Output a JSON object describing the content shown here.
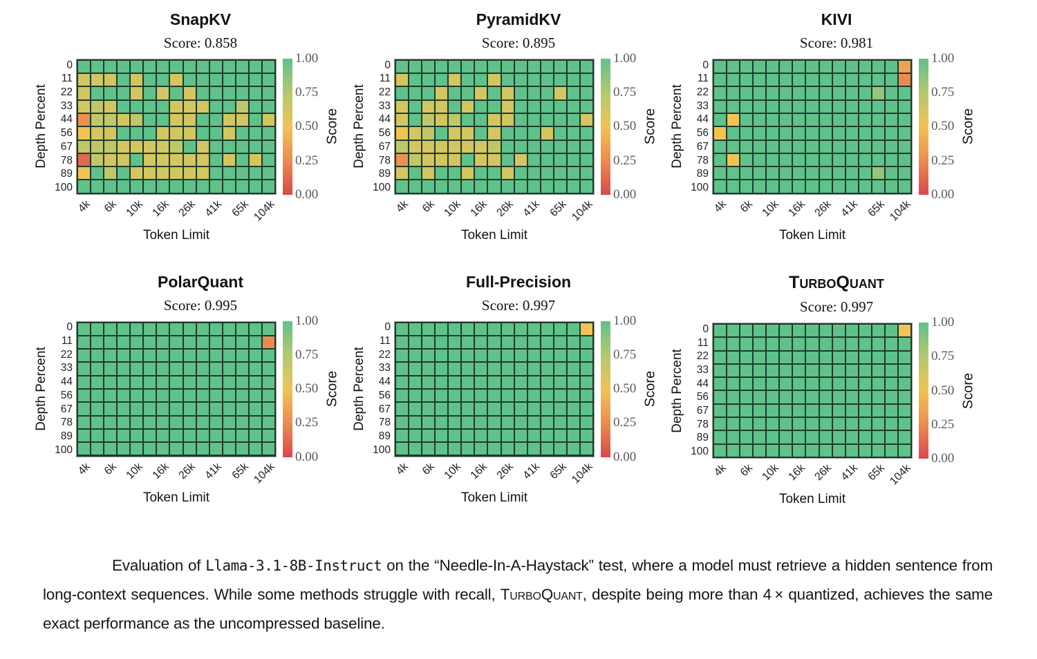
{
  "figure": {
    "x_axis_label": "Token Limit",
    "y_axis_label": "Depth Percent",
    "colorbar_label": "Score",
    "colorbar_tick_labels": [
      "1.00",
      "0.75",
      "0.50",
      "0.25",
      "0.00"
    ],
    "x_tick_labels": [
      "4k",
      "6k",
      "10k",
      "16k",
      "26k",
      "41k",
      "65k",
      "104k"
    ],
    "x_tick_columns": [
      1,
      3,
      5,
      7,
      9,
      11,
      13,
      15
    ],
    "y_tick_labels": [
      "0",
      "11",
      "22",
      "33",
      "44",
      "56",
      "67",
      "78",
      "89",
      "100"
    ],
    "n_columns": 15,
    "colors": {
      "colormap_stops": [
        [
          0,
          "#d9474d"
        ],
        [
          0.25,
          "#ec8b50"
        ],
        [
          0.5,
          "#f0c452"
        ],
        [
          0.75,
          "#b4c86f"
        ],
        [
          1,
          "#5fc28b"
        ]
      ],
      "grid_line": "#1e3a29",
      "frame": "#9a9a9a"
    }
  },
  "chart_data": [
    {
      "type": "heatmap",
      "title": "SnapKV",
      "title_smallcaps": false,
      "score_label": "Score: 0.858",
      "xlabel": "Token Limit",
      "ylabel": "Depth Percent",
      "x_categories": [
        "4k",
        "6k",
        "10k",
        "16k",
        "26k",
        "41k",
        "65k",
        "104k"
      ],
      "y_categories": [
        "0",
        "11",
        "22",
        "33",
        "44",
        "56",
        "67",
        "78",
        "89",
        "100"
      ],
      "values": [
        [
          1,
          1,
          1,
          1,
          1,
          1,
          1,
          1,
          1,
          1,
          1,
          1,
          1,
          1,
          1
        ],
        [
          0.62,
          0.62,
          0.62,
          1,
          0.62,
          1,
          1,
          0.62,
          1,
          1,
          1,
          1,
          1,
          1,
          1
        ],
        [
          0.62,
          1,
          1,
          1,
          0.62,
          1,
          0.62,
          1,
          0.62,
          1,
          1,
          1,
          1,
          1,
          1
        ],
        [
          0.62,
          0.7,
          0.62,
          1,
          1,
          1,
          1,
          0.62,
          0.62,
          0.62,
          1,
          1,
          0.7,
          1,
          1
        ],
        [
          0.28,
          0.7,
          0.7,
          0.62,
          0.7,
          1,
          1,
          0.62,
          0.62,
          1,
          1,
          0.62,
          0.62,
          1,
          0.62
        ],
        [
          0.5,
          0.62,
          0.62,
          1,
          1,
          1,
          0.62,
          0.62,
          0.62,
          1,
          1,
          0.62,
          1,
          1,
          1
        ],
        [
          0.7,
          0.7,
          0.7,
          0.62,
          0.62,
          0.62,
          0.62,
          0.7,
          1,
          0.62,
          1,
          1,
          1,
          1,
          1
        ],
        [
          0.12,
          0.7,
          0.62,
          0.62,
          1,
          0.62,
          0.62,
          0.62,
          0.62,
          0.62,
          1,
          0.62,
          1,
          0.62,
          1
        ],
        [
          0.5,
          1,
          0.7,
          1,
          0.62,
          0.62,
          0.62,
          0.62,
          0.62,
          0.62,
          1,
          1,
          1,
          1,
          1
        ],
        [
          1,
          1,
          1,
          1,
          1,
          1,
          1,
          1,
          1,
          1,
          1,
          1,
          1,
          1,
          1
        ]
      ]
    },
    {
      "type": "heatmap",
      "title": "PyramidKV",
      "title_smallcaps": false,
      "score_label": "Score: 0.895",
      "xlabel": "Token Limit",
      "ylabel": "Depth Percent",
      "x_categories": [
        "4k",
        "6k",
        "10k",
        "16k",
        "26k",
        "41k",
        "65k",
        "104k"
      ],
      "y_categories": [
        "0",
        "11",
        "22",
        "33",
        "44",
        "56",
        "67",
        "78",
        "89",
        "100"
      ],
      "values": [
        [
          1,
          1,
          1,
          1,
          1,
          1,
          1,
          1,
          1,
          1,
          1,
          1,
          1,
          1,
          1
        ],
        [
          0.62,
          1,
          1,
          1,
          0.62,
          1,
          1,
          0.62,
          1,
          1,
          1,
          1,
          1,
          1,
          1
        ],
        [
          1,
          1,
          1,
          0.62,
          1,
          1,
          0.62,
          1,
          0.62,
          1,
          1,
          1,
          0.62,
          1,
          1
        ],
        [
          0.62,
          1,
          0.62,
          0.62,
          1,
          0.62,
          1,
          1,
          0.62,
          1,
          1,
          1,
          1,
          1,
          1
        ],
        [
          0.62,
          1,
          0.7,
          0.62,
          0.7,
          1,
          1,
          0.62,
          0.62,
          1,
          1,
          1,
          1,
          1,
          0.62
        ],
        [
          0.5,
          0.62,
          0.7,
          1,
          0.62,
          0.62,
          1,
          0.62,
          1,
          1,
          1,
          0.62,
          1,
          1,
          1
        ],
        [
          0.7,
          0.62,
          0.62,
          0.62,
          0.62,
          0.62,
          0.62,
          0.7,
          1,
          1,
          1,
          1,
          1,
          1,
          1
        ],
        [
          0.28,
          0.7,
          0.62,
          0.62,
          0.62,
          1,
          0.62,
          0.62,
          1,
          0.62,
          1,
          1,
          1,
          1,
          1
        ],
        [
          0.62,
          1,
          0.62,
          1,
          1,
          0.62,
          1,
          1,
          0.62,
          1,
          1,
          1,
          1,
          1,
          1
        ],
        [
          1,
          1,
          1,
          1,
          1,
          1,
          1,
          1,
          1,
          1,
          1,
          1,
          1,
          1,
          1
        ]
      ]
    },
    {
      "type": "heatmap",
      "title": "KIVI",
      "title_smallcaps": false,
      "score_label": "Score: 0.981",
      "xlabel": "Token Limit",
      "ylabel": "Depth Percent",
      "x_categories": [
        "4k",
        "6k",
        "10k",
        "16k",
        "26k",
        "41k",
        "65k",
        "104k"
      ],
      "y_categories": [
        "0",
        "11",
        "22",
        "33",
        "44",
        "56",
        "67",
        "78",
        "89",
        "100"
      ],
      "values": [
        [
          1,
          1,
          1,
          1,
          1,
          1,
          1,
          1,
          1,
          1,
          1,
          1,
          1,
          1,
          0.35
        ],
        [
          1,
          1,
          1,
          1,
          1,
          1,
          1,
          1,
          1,
          1,
          1,
          1,
          1,
          1,
          0.25
        ],
        [
          1,
          1,
          1,
          1,
          1,
          1,
          1,
          1,
          1,
          1,
          1,
          1,
          0.85,
          1,
          1
        ],
        [
          1,
          1,
          1,
          1,
          1,
          1,
          1,
          1,
          1,
          1,
          1,
          1,
          1,
          1,
          1
        ],
        [
          1,
          0.5,
          1,
          1,
          1,
          1,
          1,
          1,
          1,
          1,
          1,
          1,
          1,
          1,
          1
        ],
        [
          0.5,
          1,
          1,
          1,
          1,
          1,
          1,
          1,
          1,
          1,
          1,
          1,
          1,
          1,
          1
        ],
        [
          1,
          1,
          1,
          1,
          1,
          1,
          1,
          1,
          1,
          1,
          1,
          1,
          1,
          1,
          1
        ],
        [
          1,
          0.5,
          1,
          1,
          1,
          1,
          1,
          1,
          1,
          1,
          1,
          1,
          1,
          1,
          1
        ],
        [
          1,
          1,
          1,
          1,
          1,
          1,
          1,
          1,
          1,
          1,
          1,
          1,
          0.85,
          1,
          1
        ],
        [
          1,
          1,
          1,
          1,
          1,
          1,
          1,
          1,
          1,
          1,
          1,
          1,
          1,
          1,
          1
        ]
      ]
    },
    {
      "type": "heatmap",
      "title": "PolarQuant",
      "title_smallcaps": false,
      "score_label": "Score: 0.995",
      "xlabel": "Token Limit",
      "ylabel": "Depth Percent",
      "x_categories": [
        "4k",
        "6k",
        "10k",
        "16k",
        "26k",
        "41k",
        "65k",
        "104k"
      ],
      "y_categories": [
        "0",
        "11",
        "22",
        "33",
        "44",
        "56",
        "67",
        "78",
        "89",
        "100"
      ],
      "values": [
        [
          1,
          1,
          1,
          1,
          1,
          1,
          1,
          1,
          1,
          1,
          1,
          1,
          1,
          1,
          1
        ],
        [
          1,
          1,
          1,
          1,
          1,
          1,
          1,
          1,
          1,
          1,
          1,
          1,
          1,
          1,
          0.25
        ],
        [
          1,
          1,
          1,
          1,
          1,
          1,
          1,
          1,
          1,
          1,
          1,
          1,
          1,
          1,
          1
        ],
        [
          1,
          1,
          1,
          1,
          1,
          1,
          1,
          1,
          1,
          1,
          1,
          1,
          1,
          1,
          1
        ],
        [
          1,
          1,
          1,
          1,
          1,
          1,
          1,
          1,
          1,
          1,
          1,
          1,
          1,
          1,
          1
        ],
        [
          1,
          1,
          1,
          1,
          1,
          1,
          1,
          1,
          1,
          1,
          1,
          1,
          1,
          1,
          1
        ],
        [
          1,
          1,
          1,
          1,
          1,
          1,
          1,
          1,
          1,
          1,
          1,
          1,
          1,
          1,
          1
        ],
        [
          1,
          1,
          1,
          1,
          1,
          1,
          1,
          1,
          1,
          1,
          1,
          1,
          1,
          1,
          1
        ],
        [
          1,
          1,
          1,
          1,
          1,
          1,
          1,
          1,
          1,
          1,
          1,
          1,
          1,
          1,
          1
        ],
        [
          1,
          1,
          1,
          1,
          1,
          1,
          1,
          1,
          1,
          1,
          1,
          1,
          1,
          1,
          1
        ]
      ]
    },
    {
      "type": "heatmap",
      "title": "Full-Precision",
      "title_smallcaps": false,
      "score_label": "Score: 0.997",
      "xlabel": "Token Limit",
      "ylabel": "Depth Percent",
      "x_categories": [
        "4k",
        "6k",
        "10k",
        "16k",
        "26k",
        "41k",
        "65k",
        "104k"
      ],
      "y_categories": [
        "0",
        "11",
        "22",
        "33",
        "44",
        "56",
        "67",
        "78",
        "89",
        "100"
      ],
      "values": [
        [
          1,
          1,
          1,
          1,
          1,
          1,
          1,
          1,
          1,
          1,
          1,
          1,
          1,
          1,
          0.5
        ],
        [
          1,
          1,
          1,
          1,
          1,
          1,
          1,
          1,
          1,
          1,
          1,
          1,
          1,
          1,
          1
        ],
        [
          1,
          1,
          1,
          1,
          1,
          1,
          1,
          1,
          1,
          1,
          1,
          1,
          1,
          1,
          1
        ],
        [
          1,
          1,
          1,
          1,
          1,
          1,
          1,
          1,
          1,
          1,
          1,
          1,
          1,
          1,
          1
        ],
        [
          1,
          1,
          1,
          1,
          1,
          1,
          1,
          1,
          1,
          1,
          1,
          1,
          1,
          1,
          1
        ],
        [
          1,
          1,
          1,
          1,
          1,
          1,
          1,
          1,
          1,
          1,
          1,
          1,
          1,
          1,
          1
        ],
        [
          1,
          1,
          1,
          1,
          1,
          1,
          1,
          1,
          1,
          1,
          1,
          1,
          1,
          1,
          1
        ],
        [
          1,
          1,
          1,
          1,
          1,
          1,
          1,
          1,
          1,
          1,
          1,
          1,
          1,
          1,
          1
        ],
        [
          1,
          1,
          1,
          1,
          1,
          1,
          1,
          1,
          1,
          1,
          1,
          1,
          1,
          1,
          1
        ],
        [
          1,
          1,
          1,
          1,
          1,
          1,
          1,
          1,
          1,
          1,
          1,
          1,
          1,
          1,
          1
        ]
      ]
    },
    {
      "type": "heatmap",
      "title": "TurboQuant",
      "title_smallcaps": true,
      "score_label": "Score: 0.997",
      "xlabel": "Token Limit",
      "ylabel": "Depth Percent",
      "x_categories": [
        "4k",
        "6k",
        "10k",
        "16k",
        "26k",
        "41k",
        "65k",
        "104k"
      ],
      "y_categories": [
        "0",
        "11",
        "22",
        "33",
        "44",
        "56",
        "67",
        "78",
        "89",
        "100"
      ],
      "values": [
        [
          1,
          1,
          1,
          1,
          1,
          1,
          1,
          1,
          1,
          1,
          1,
          1,
          1,
          1,
          0.5
        ],
        [
          1,
          1,
          1,
          1,
          1,
          1,
          1,
          1,
          1,
          1,
          1,
          1,
          1,
          1,
          1
        ],
        [
          1,
          1,
          1,
          1,
          1,
          1,
          1,
          1,
          1,
          1,
          1,
          1,
          1,
          1,
          1
        ],
        [
          1,
          1,
          1,
          1,
          1,
          1,
          1,
          1,
          1,
          1,
          1,
          1,
          1,
          1,
          1
        ],
        [
          1,
          1,
          1,
          1,
          1,
          1,
          1,
          1,
          1,
          1,
          1,
          1,
          1,
          1,
          1
        ],
        [
          1,
          1,
          1,
          1,
          1,
          1,
          1,
          1,
          1,
          1,
          1,
          1,
          1,
          1,
          1
        ],
        [
          1,
          1,
          1,
          1,
          1,
          1,
          1,
          1,
          1,
          1,
          1,
          1,
          1,
          1,
          1
        ],
        [
          1,
          1,
          1,
          1,
          1,
          1,
          1,
          1,
          1,
          1,
          1,
          1,
          1,
          1,
          1
        ],
        [
          1,
          1,
          1,
          1,
          1,
          1,
          1,
          1,
          1,
          1,
          1,
          1,
          1,
          1,
          1
        ],
        [
          1,
          1,
          1,
          1,
          1,
          1,
          1,
          1,
          1,
          1,
          1,
          1,
          1,
          1,
          1
        ]
      ]
    }
  ],
  "caption": {
    "segments": [
      {
        "style": "normal",
        "text": "Evaluation of "
      },
      {
        "style": "mono",
        "text": "Llama-3.1-8B-Instruct"
      },
      {
        "style": "normal",
        "text": " on the “Needle-In-A-Haystack” test, where a model must retrieve a hidden sentence from long-context sequences. While some methods struggle with recall, "
      },
      {
        "style": "smallcaps",
        "text": "TurboQuant"
      },
      {
        "style": "normal",
        "text": ", despite being more than 4 × quantized, achieves the same exact performance as the uncompressed baseline."
      }
    ]
  }
}
